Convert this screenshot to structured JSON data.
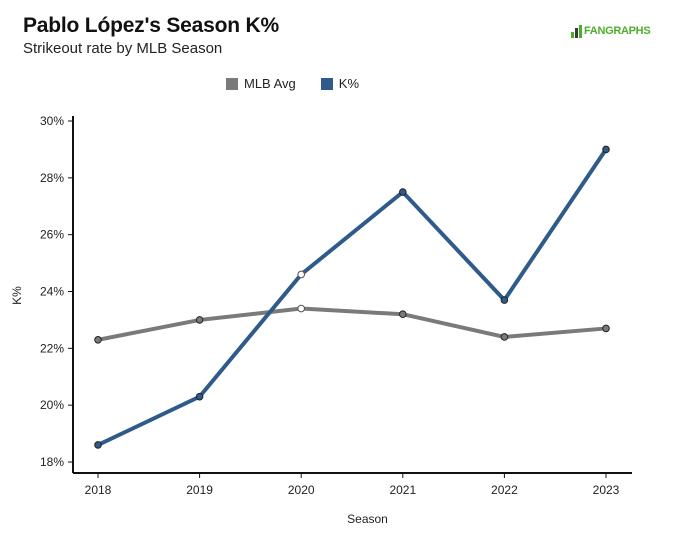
{
  "header": {
    "title": "Pablo López's Season K%",
    "subtitle": "Strikeout rate by MLB Season",
    "logo_text": "FANGRAPHS"
  },
  "colors": {
    "mlb_avg": "#7a7a7a",
    "k_pct": "#2f5b8a",
    "logo_green": "#4caf2a"
  },
  "chart_data": {
    "type": "line",
    "title": "Pablo López's Season K%",
    "subtitle": "Strikeout rate by MLB Season",
    "xlabel": "Season",
    "ylabel": "K%",
    "categories": [
      "2018",
      "2019",
      "2020",
      "2021",
      "2022",
      "2023"
    ],
    "ylim": [
      18,
      30
    ],
    "yticks": [
      18,
      20,
      22,
      24,
      26,
      28,
      30
    ],
    "ytick_labels": [
      "18%",
      "20%",
      "22%",
      "24%",
      "26%",
      "28%",
      "30%"
    ],
    "legend_position": "top-center",
    "grid": false,
    "series": [
      {
        "name": "MLB Avg",
        "color": "#7a7a7a",
        "values": [
          22.3,
          23.0,
          23.4,
          23.2,
          22.4,
          22.7
        ],
        "hollow_marker_index": 2
      },
      {
        "name": "K%",
        "color": "#2f5b8a",
        "values": [
          18.6,
          20.3,
          24.6,
          27.5,
          23.7,
          29.0
        ],
        "hollow_marker_index": 2
      }
    ]
  }
}
